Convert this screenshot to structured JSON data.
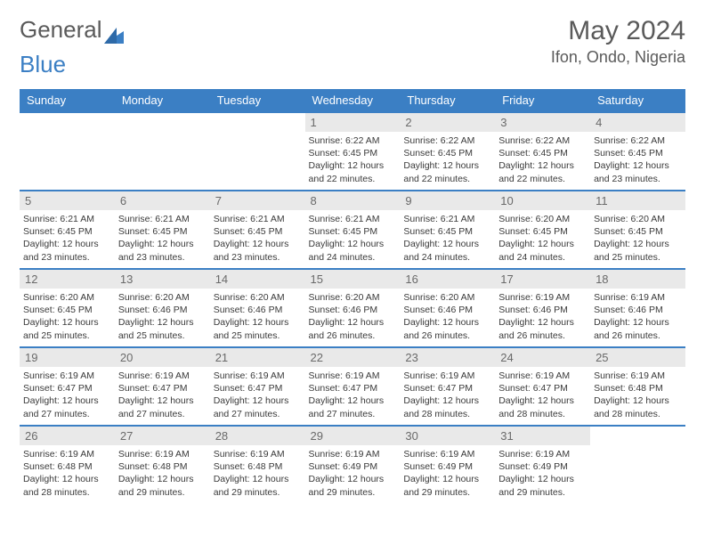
{
  "brand": {
    "name_a": "General",
    "name_b": "Blue"
  },
  "title": {
    "month": "May 2024",
    "location": "Ifon, Ondo, Nigeria"
  },
  "colors": {
    "accent": "#3b7fc4",
    "header_text": "#ffffff",
    "daynum_bg": "#e9e9e9",
    "daynum_text": "#6a6a6a",
    "body_text": "#3a3a3a",
    "row_border": "#3b7fc4",
    "page_bg": "#ffffff"
  },
  "typography": {
    "title_fontsize_pt": 22,
    "location_fontsize_pt": 14,
    "header_fontsize_pt": 10,
    "cell_fontsize_pt": 8
  },
  "calendar": {
    "type": "table",
    "columns": [
      "Sunday",
      "Monday",
      "Tuesday",
      "Wednesday",
      "Thursday",
      "Friday",
      "Saturday"
    ],
    "weeks": [
      [
        null,
        null,
        null,
        {
          "n": "1",
          "sr": "6:22 AM",
          "ss": "6:45 PM",
          "dl": "12 hours and 22 minutes."
        },
        {
          "n": "2",
          "sr": "6:22 AM",
          "ss": "6:45 PM",
          "dl": "12 hours and 22 minutes."
        },
        {
          "n": "3",
          "sr": "6:22 AM",
          "ss": "6:45 PM",
          "dl": "12 hours and 22 minutes."
        },
        {
          "n": "4",
          "sr": "6:22 AM",
          "ss": "6:45 PM",
          "dl": "12 hours and 23 minutes."
        }
      ],
      [
        {
          "n": "5",
          "sr": "6:21 AM",
          "ss": "6:45 PM",
          "dl": "12 hours and 23 minutes."
        },
        {
          "n": "6",
          "sr": "6:21 AM",
          "ss": "6:45 PM",
          "dl": "12 hours and 23 minutes."
        },
        {
          "n": "7",
          "sr": "6:21 AM",
          "ss": "6:45 PM",
          "dl": "12 hours and 23 minutes."
        },
        {
          "n": "8",
          "sr": "6:21 AM",
          "ss": "6:45 PM",
          "dl": "12 hours and 24 minutes."
        },
        {
          "n": "9",
          "sr": "6:21 AM",
          "ss": "6:45 PM",
          "dl": "12 hours and 24 minutes."
        },
        {
          "n": "10",
          "sr": "6:20 AM",
          "ss": "6:45 PM",
          "dl": "12 hours and 24 minutes."
        },
        {
          "n": "11",
          "sr": "6:20 AM",
          "ss": "6:45 PM",
          "dl": "12 hours and 25 minutes."
        }
      ],
      [
        {
          "n": "12",
          "sr": "6:20 AM",
          "ss": "6:45 PM",
          "dl": "12 hours and 25 minutes."
        },
        {
          "n": "13",
          "sr": "6:20 AM",
          "ss": "6:46 PM",
          "dl": "12 hours and 25 minutes."
        },
        {
          "n": "14",
          "sr": "6:20 AM",
          "ss": "6:46 PM",
          "dl": "12 hours and 25 minutes."
        },
        {
          "n": "15",
          "sr": "6:20 AM",
          "ss": "6:46 PM",
          "dl": "12 hours and 26 minutes."
        },
        {
          "n": "16",
          "sr": "6:20 AM",
          "ss": "6:46 PM",
          "dl": "12 hours and 26 minutes."
        },
        {
          "n": "17",
          "sr": "6:19 AM",
          "ss": "6:46 PM",
          "dl": "12 hours and 26 minutes."
        },
        {
          "n": "18",
          "sr": "6:19 AM",
          "ss": "6:46 PM",
          "dl": "12 hours and 26 minutes."
        }
      ],
      [
        {
          "n": "19",
          "sr": "6:19 AM",
          "ss": "6:47 PM",
          "dl": "12 hours and 27 minutes."
        },
        {
          "n": "20",
          "sr": "6:19 AM",
          "ss": "6:47 PM",
          "dl": "12 hours and 27 minutes."
        },
        {
          "n": "21",
          "sr": "6:19 AM",
          "ss": "6:47 PM",
          "dl": "12 hours and 27 minutes."
        },
        {
          "n": "22",
          "sr": "6:19 AM",
          "ss": "6:47 PM",
          "dl": "12 hours and 27 minutes."
        },
        {
          "n": "23",
          "sr": "6:19 AM",
          "ss": "6:47 PM",
          "dl": "12 hours and 28 minutes."
        },
        {
          "n": "24",
          "sr": "6:19 AM",
          "ss": "6:47 PM",
          "dl": "12 hours and 28 minutes."
        },
        {
          "n": "25",
          "sr": "6:19 AM",
          "ss": "6:48 PM",
          "dl": "12 hours and 28 minutes."
        }
      ],
      [
        {
          "n": "26",
          "sr": "6:19 AM",
          "ss": "6:48 PM",
          "dl": "12 hours and 28 minutes."
        },
        {
          "n": "27",
          "sr": "6:19 AM",
          "ss": "6:48 PM",
          "dl": "12 hours and 29 minutes."
        },
        {
          "n": "28",
          "sr": "6:19 AM",
          "ss": "6:48 PM",
          "dl": "12 hours and 29 minutes."
        },
        {
          "n": "29",
          "sr": "6:19 AM",
          "ss": "6:49 PM",
          "dl": "12 hours and 29 minutes."
        },
        {
          "n": "30",
          "sr": "6:19 AM",
          "ss": "6:49 PM",
          "dl": "12 hours and 29 minutes."
        },
        {
          "n": "31",
          "sr": "6:19 AM",
          "ss": "6:49 PM",
          "dl": "12 hours and 29 minutes."
        },
        null
      ]
    ],
    "labels": {
      "sunrise": "Sunrise:",
      "sunset": "Sunset:",
      "daylight": "Daylight:"
    }
  }
}
